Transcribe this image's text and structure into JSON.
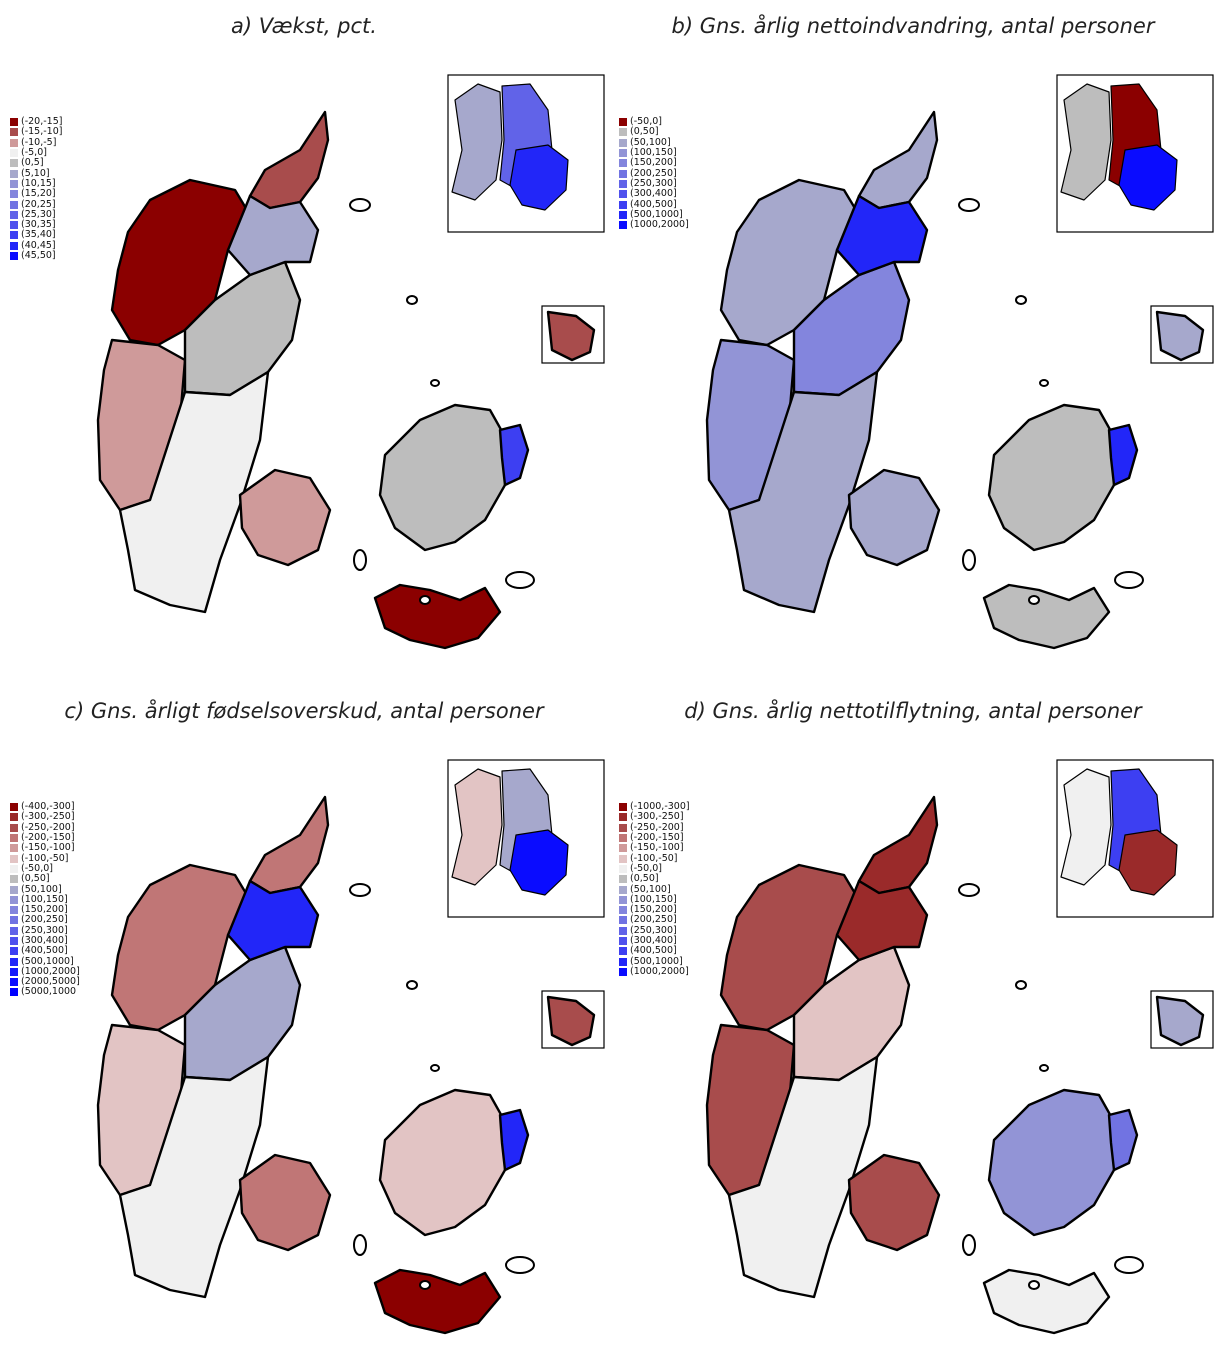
{
  "figure": {
    "panels": [
      {
        "id": "a",
        "title": "a) Vækst, pct.",
        "legend": [
          {
            "label": "(-20,-15]",
            "color": "#8b0000"
          },
          {
            "label": "(-15,-10]",
            "color": "#a84c4c"
          },
          {
            "label": "(-10,-5]",
            "color": "#cf9a9a"
          },
          {
            "label": "(-5,0]",
            "color": "#f0f0f0"
          },
          {
            "label": "(0,5]",
            "color": "#bdbdbd"
          },
          {
            "label": "(5,10]",
            "color": "#a6a8cc"
          },
          {
            "label": "(10,15]",
            "color": "#9294d6"
          },
          {
            "label": "(15,20]",
            "color": "#8385dd"
          },
          {
            "label": "(20,25]",
            "color": "#7173e2"
          },
          {
            "label": "(25,30]",
            "color": "#6163e8"
          },
          {
            "label": "(30,35]",
            "color": "#4f51ed"
          },
          {
            "label": "(35,40]",
            "color": "#3d3ff2"
          },
          {
            "label": "(40,45]",
            "color": "#2226f8"
          },
          {
            "label": "(45,50]",
            "color": "#0a0cff"
          }
        ],
        "region_colors": {
          "north": "#a84c4c",
          "northwest": "#8b0000",
          "west": "#cf9a9a",
          "central": "#bdbdbd",
          "east": "#a6a8cc",
          "south": "#f0f0f0",
          "fyn": "#cf9a9a",
          "zealand": "#bdbdbd",
          "copenhagen": "#3d3ff2",
          "lolland": "#8b0000",
          "bornholm": "#a84c4c",
          "inset_a": "#a6a8cc",
          "inset_b": "#6163e8",
          "inset_c": "#2226f8"
        }
      },
      {
        "id": "b",
        "title": "b) Gns. årlig nettoindvandring, antal personer",
        "legend": [
          {
            "label": "(-50,0]",
            "color": "#8b0000"
          },
          {
            "label": "(0,50]",
            "color": "#bdbdbd"
          },
          {
            "label": "(50,100]",
            "color": "#a6a8cc"
          },
          {
            "label": "(100,150]",
            "color": "#9294d6"
          },
          {
            "label": "(150,200]",
            "color": "#8385dd"
          },
          {
            "label": "(200,250]",
            "color": "#7173e2"
          },
          {
            "label": "(250,300]",
            "color": "#6163e8"
          },
          {
            "label": "(300,400]",
            "color": "#4f51ed"
          },
          {
            "label": "(400,500]",
            "color": "#3d3ff2"
          },
          {
            "label": "(500,1000]",
            "color": "#2226f8"
          },
          {
            "label": "(1000,2000]",
            "color": "#0a0cff"
          }
        ],
        "region_colors": {
          "north": "#a6a8cc",
          "northwest": "#a6a8cc",
          "west": "#9294d6",
          "central": "#8385dd",
          "east": "#2226f8",
          "south": "#a6a8cc",
          "fyn": "#a6a8cc",
          "zealand": "#bdbdbd",
          "copenhagen": "#2226f8",
          "lolland": "#bdbdbd",
          "bornholm": "#a6a8cc",
          "inset_a": "#bdbdbd",
          "inset_b": "#8b0000",
          "inset_c": "#0a0cff"
        }
      },
      {
        "id": "c",
        "title": "c) Gns. årligt fødselsoverskud, antal personer",
        "legend": [
          {
            "label": "(-400,-300]",
            "color": "#8b0000"
          },
          {
            "label": "(-300,-250]",
            "color": "#9a2a2a"
          },
          {
            "label": "(-250,-200]",
            "color": "#a84c4c"
          },
          {
            "label": "(-200,-150]",
            "color": "#c07676"
          },
          {
            "label": "(-150,-100]",
            "color": "#cf9a9a"
          },
          {
            "label": "(-100,-50]",
            "color": "#e2c4c4"
          },
          {
            "label": "(-50,0]",
            "color": "#f0f0f0"
          },
          {
            "label": "(0,50]",
            "color": "#bdbdbd"
          },
          {
            "label": "(50,100]",
            "color": "#a6a8cc"
          },
          {
            "label": "(100,150]",
            "color": "#9294d6"
          },
          {
            "label": "(150,200]",
            "color": "#8385dd"
          },
          {
            "label": "(200,250]",
            "color": "#7173e2"
          },
          {
            "label": "(250,300]",
            "color": "#6163e8"
          },
          {
            "label": "(300,400]",
            "color": "#4f51ed"
          },
          {
            "label": "(400,500]",
            "color": "#3d3ff2"
          },
          {
            "label": "(500,1000]",
            "color": "#2226f8"
          },
          {
            "label": "(1000,2000]",
            "color": "#1418fb"
          },
          {
            "label": "(2000,5000]",
            "color": "#0a0cff"
          },
          {
            "label": "(5000,1000",
            "color": "#0000ff"
          }
        ],
        "region_colors": {
          "north": "#c07676",
          "northwest": "#c07676",
          "west": "#e2c4c4",
          "central": "#a6a8cc",
          "east": "#2226f8",
          "south": "#f0f0f0",
          "fyn": "#c07676",
          "zealand": "#e2c4c4",
          "copenhagen": "#2226f8",
          "lolland": "#8b0000",
          "bornholm": "#a84c4c",
          "inset_a": "#e2c4c4",
          "inset_b": "#a6a8cc",
          "inset_c": "#0a0cff"
        }
      },
      {
        "id": "d",
        "title": "d) Gns. årlig nettotilflytning, antal personer",
        "legend": [
          {
            "label": "(-1000,-300]",
            "color": "#8b0000"
          },
          {
            "label": "(-300,-250]",
            "color": "#9a2a2a"
          },
          {
            "label": "(-250,-200]",
            "color": "#a84c4c"
          },
          {
            "label": "(-200,-150]",
            "color": "#c07676"
          },
          {
            "label": "(-150,-100]",
            "color": "#cf9a9a"
          },
          {
            "label": "(-100,-50]",
            "color": "#e2c4c4"
          },
          {
            "label": "(-50,0]",
            "color": "#f0f0f0"
          },
          {
            "label": "(0,50]",
            "color": "#bdbdbd"
          },
          {
            "label": "(50,100]",
            "color": "#a6a8cc"
          },
          {
            "label": "(100,150]",
            "color": "#9294d6"
          },
          {
            "label": "(150,200]",
            "color": "#8385dd"
          },
          {
            "label": "(200,250]",
            "color": "#7173e2"
          },
          {
            "label": "(250,300]",
            "color": "#6163e8"
          },
          {
            "label": "(300,400]",
            "color": "#4f51ed"
          },
          {
            "label": "(400,500]",
            "color": "#3d3ff2"
          },
          {
            "label": "(500,1000]",
            "color": "#2226f8"
          },
          {
            "label": "(1000,2000]",
            "color": "#0a0cff"
          }
        ],
        "region_colors": {
          "north": "#9a2a2a",
          "northwest": "#a84c4c",
          "west": "#a84c4c",
          "central": "#e2c4c4",
          "east": "#9a2a2a",
          "south": "#f0f0f0",
          "fyn": "#a84c4c",
          "zealand": "#9294d6",
          "copenhagen": "#7173e2",
          "lolland": "#f0f0f0",
          "bornholm": "#a6a8cc",
          "inset_a": "#f0f0f0",
          "inset_b": "#3d3ff2",
          "inset_c": "#9a2a2a"
        }
      }
    ]
  }
}
